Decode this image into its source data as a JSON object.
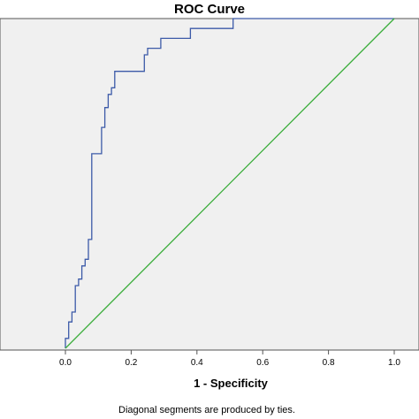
{
  "chart_data": {
    "type": "line",
    "title": "ROC Curve",
    "xlabel": "1 - Specificity",
    "ylabel": "",
    "footnote": "Diagonal segments are produced by ties.",
    "xlim": [
      0.0,
      1.0
    ],
    "ylim": [
      0.0,
      1.0
    ],
    "x_ticks": [
      "0.0",
      "0.2",
      "0.4",
      "0.6",
      "0.8",
      "1.0"
    ],
    "x_tick_values": [
      0.0,
      0.2,
      0.4,
      0.6,
      0.8,
      1.0
    ],
    "grid": false,
    "plot_background": "#f0f0f0",
    "series": [
      {
        "color": "#3c5aa8",
        "x": [
          0.0,
          0.0,
          0.01,
          0.01,
          0.02,
          0.02,
          0.03,
          0.03,
          0.04,
          0.04,
          0.05,
          0.05,
          0.06,
          0.06,
          0.07,
          0.07,
          0.08,
          0.08,
          0.11,
          0.11,
          0.12,
          0.12,
          0.13,
          0.13,
          0.14,
          0.14,
          0.15,
          0.15,
          0.24,
          0.24,
          0.25,
          0.25,
          0.29,
          0.29,
          0.38,
          0.38,
          0.51,
          0.51,
          1.0
        ],
        "y": [
          0.0,
          0.03,
          0.03,
          0.08,
          0.08,
          0.11,
          0.11,
          0.19,
          0.19,
          0.21,
          0.21,
          0.25,
          0.25,
          0.27,
          0.27,
          0.33,
          0.33,
          0.59,
          0.59,
          0.67,
          0.67,
          0.73,
          0.73,
          0.77,
          0.77,
          0.79,
          0.79,
          0.84,
          0.84,
          0.89,
          0.89,
          0.91,
          0.91,
          0.94,
          0.94,
          0.97,
          0.97,
          1.0,
          1.0
        ]
      },
      {
        "color": "#3aad3a",
        "x": [
          0.0,
          1.0
        ],
        "y": [
          0.0,
          1.0
        ]
      }
    ]
  }
}
